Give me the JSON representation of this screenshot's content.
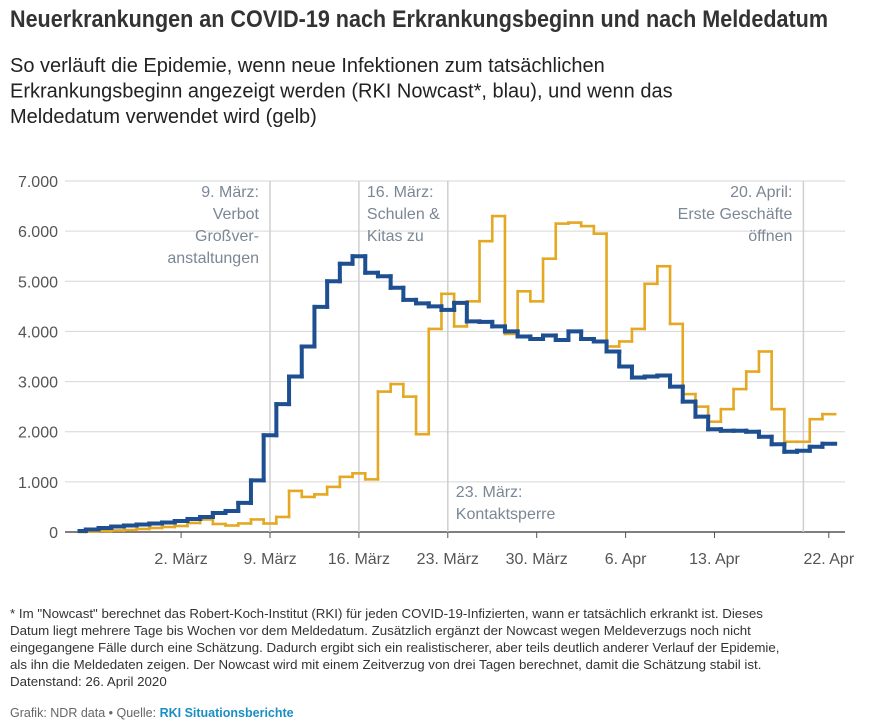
{
  "chart_data": {
    "type": "step",
    "title": "Neuerkrankungen an COVID-19 nach Erkrankungsbeginn und nach Meldedatum",
    "subtitle": [
      "So verläuft die Epidemie, wenn neue Infektionen zum tatsächlichen",
      "Erkrankungsbeginn angezeigt werden (RKI Nowcast*, blau), und wenn das",
      "Meldedatum verwendet wird (gelb)"
    ],
    "categories": [
      null,
      null,
      null,
      null,
      null,
      null,
      null,
      null,
      "2. März",
      null,
      null,
      null,
      null,
      null,
      null,
      "9. März",
      null,
      null,
      null,
      null,
      null,
      null,
      "16. März",
      null,
      null,
      null,
      null,
      null,
      null,
      "23. März",
      null,
      null,
      null,
      null,
      null,
      null,
      "30. März",
      null,
      null,
      null,
      null,
      null,
      null,
      "6. Apr",
      null,
      null,
      null,
      null,
      null,
      null,
      "13. Apr",
      null,
      null,
      null,
      null,
      null,
      null,
      null,
      null,
      "22. Apr"
    ],
    "series": [
      {
        "color": "#e5a823",
        "values": [
          0,
          10,
          20,
          30,
          40,
          60,
          80,
          100,
          120,
          180,
          250,
          160,
          130,
          170,
          250,
          170,
          300,
          820,
          700,
          750,
          900,
          1100,
          1170,
          1050,
          2800,
          2950,
          2700,
          1950,
          4050,
          4750,
          4100,
          4600,
          5800,
          6300,
          3950,
          4800,
          4600,
          5450,
          6150,
          6170,
          6100,
          5950,
          3700,
          3800,
          4050,
          4950,
          5300,
          4150,
          2750,
          2500,
          2200,
          2450,
          2850,
          3200,
          3600,
          2450,
          1800,
          1800,
          2250,
          2350
        ]
      },
      {
        "color": "#1d4f91",
        "values": [
          20,
          50,
          80,
          110,
          130,
          150,
          170,
          190,
          220,
          260,
          300,
          380,
          420,
          580,
          1030,
          1930,
          2550,
          3100,
          3700,
          4490,
          5000,
          5350,
          5500,
          5170,
          5100,
          4870,
          4630,
          4560,
          4500,
          4430,
          4570,
          4200,
          4190,
          4100,
          4000,
          3900,
          3850,
          3920,
          3830,
          4000,
          3850,
          3800,
          3600,
          3300,
          3080,
          3100,
          3120,
          2900,
          2600,
          2300,
          2050,
          2020,
          2020,
          2000,
          1900,
          1750,
          1600,
          1620,
          1700,
          1760
        ]
      }
    ],
    "ylim": [
      0,
      7000
    ],
    "yticks": [
      0,
      {
        "value": 1000,
        "label": "1.000"
      },
      {
        "value": 2000,
        "label": "2.000"
      },
      {
        "value": 3000,
        "label": "3.000"
      },
      {
        "value": 4000,
        "label": "4.000"
      },
      {
        "value": 5000,
        "label": "5.000"
      },
      {
        "value": 6000,
        "label": "6.000"
      },
      {
        "value": 7000,
        "label": "7.000"
      }
    ],
    "grid": true,
    "annotations": [
      {
        "category": 15,
        "align": "right",
        "position": "top",
        "lines": [
          "9. März:",
          "Verbot",
          "Großver-",
          "anstaltungen"
        ]
      },
      {
        "category": 22,
        "align": "left",
        "position": "top",
        "lines": [
          "16. März:",
          "Schulen &",
          "Kitas zu"
        ]
      },
      {
        "category": 29,
        "align": "left",
        "position": "bottom",
        "lines": [
          "23. März:",
          "Kontaktsperre"
        ]
      },
      {
        "category": 57,
        "align": "right",
        "position": "top",
        "lines": [
          "20. April:",
          "Erste Geschäfte",
          "öffnen"
        ]
      }
    ],
    "notes": [
      "* Im \"Nowcast\" berechnet das Robert-Koch-Institut (RKI) für jeden COVID-19-Infizierten, wann er tatsächlich erkrankt ist. Dieses",
      "Datum liegt mehrere Tage bis Wochen vor dem Meldedatum. Zusätzlich ergänzt der Nowcast wegen Meldeverzugs noch nicht",
      "eingegangene Fälle durch eine Schätzung. Dadurch ergibt sich ein realistischerer, aber teils deutlich anderer Verlauf der Epidemie,",
      "als ihn die Meldedaten zeigen. Der Nowcast wird mit einem Zeitverzug von drei Tagen berechnet, damit die Schätzung stabil ist.",
      "Datenstand: 26. April 2020"
    ],
    "source": {
      "prefix": "Grafik: NDR data • Quelle: ",
      "link": "RKI Situationsberichte"
    }
  }
}
